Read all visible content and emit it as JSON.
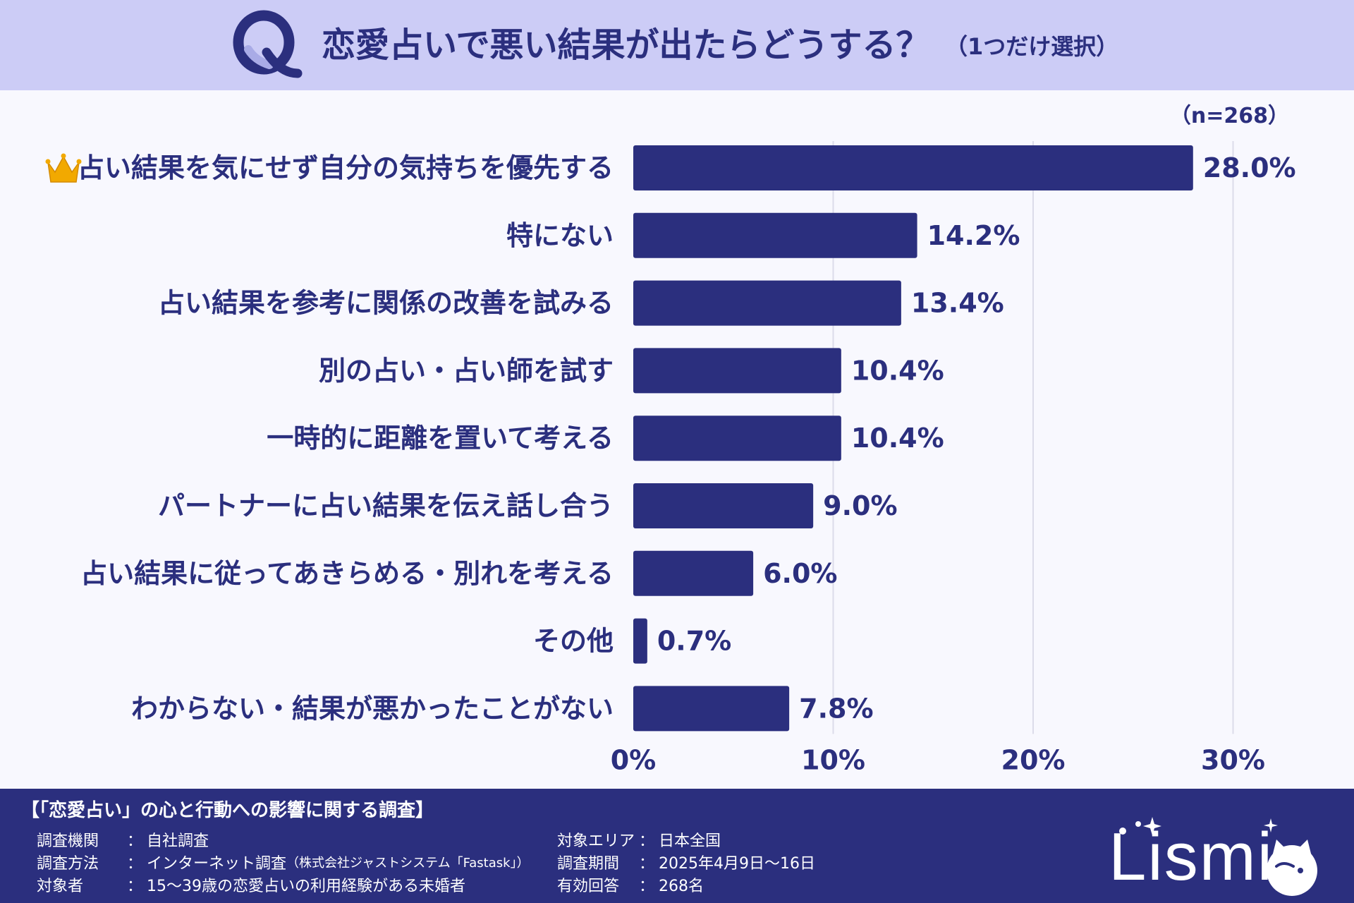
{
  "header": {
    "q_letter": "Q",
    "title": "恋愛占いで悪い結果が出たらどうする？",
    "subtitle": "（1つだけ選択）"
  },
  "chart_data": {
    "type": "bar",
    "orientation": "horizontal",
    "title": "恋愛占いで悪い結果が出たらどうする？（1つだけ選択）",
    "sample_size": "（n=268）",
    "categories": [
      "占い結果を気にせず自分の気持ちを優先する",
      "特にない",
      "占い結果を参考に関係の改善を試みる",
      "別の占い・占い師を試す",
      "一時的に距離を置いて考える",
      "パートナーに占い結果を伝え話し合う",
      "占い結果に従ってあきらめる・別れを考える",
      "その他",
      "わからない・結果が悪かったことがない"
    ],
    "values": [
      28.0,
      14.2,
      13.4,
      10.4,
      10.4,
      9.0,
      6.0,
      0.7,
      7.8
    ],
    "value_labels": [
      "28.0%",
      "14.2%",
      "13.4%",
      "10.4%",
      "10.4%",
      "9.0%",
      "6.0%",
      "0.7%",
      "7.8%"
    ],
    "xlim": [
      0,
      30
    ],
    "ticks": [
      0,
      10,
      20,
      30
    ],
    "tick_labels": [
      "0%",
      "10%",
      "20%",
      "30%"
    ],
    "top_marker": "crown-icon",
    "grid": true,
    "bar_color": "#2b2f7e"
  },
  "footer": {
    "survey_title": "【「恋愛占い」の心と行動への影響に関する調査】",
    "separator": "：",
    "left": [
      {
        "label": "調査機関",
        "value": "自社調査",
        "note": ""
      },
      {
        "label": "調査方法",
        "value": "インターネット調査",
        "note": "（株式会社ジャストシステム「Fastask」）"
      },
      {
        "label": "対象者",
        "value": "15～39歳の恋愛占いの利用経験がある未婚者",
        "note": ""
      }
    ],
    "right": [
      {
        "label": "対象エリア",
        "value": "日本全国"
      },
      {
        "label": "調査期間",
        "value": "2025年4月9日～16日"
      },
      {
        "label": "有効回答",
        "value": "268名"
      }
    ]
  },
  "brand": {
    "name": "Lismi"
  },
  "colors": {
    "header_bg": "#ccccf6",
    "page_bg": "#f8f8fe",
    "accent": "#2b2f7e",
    "crown": "#f2a900"
  }
}
